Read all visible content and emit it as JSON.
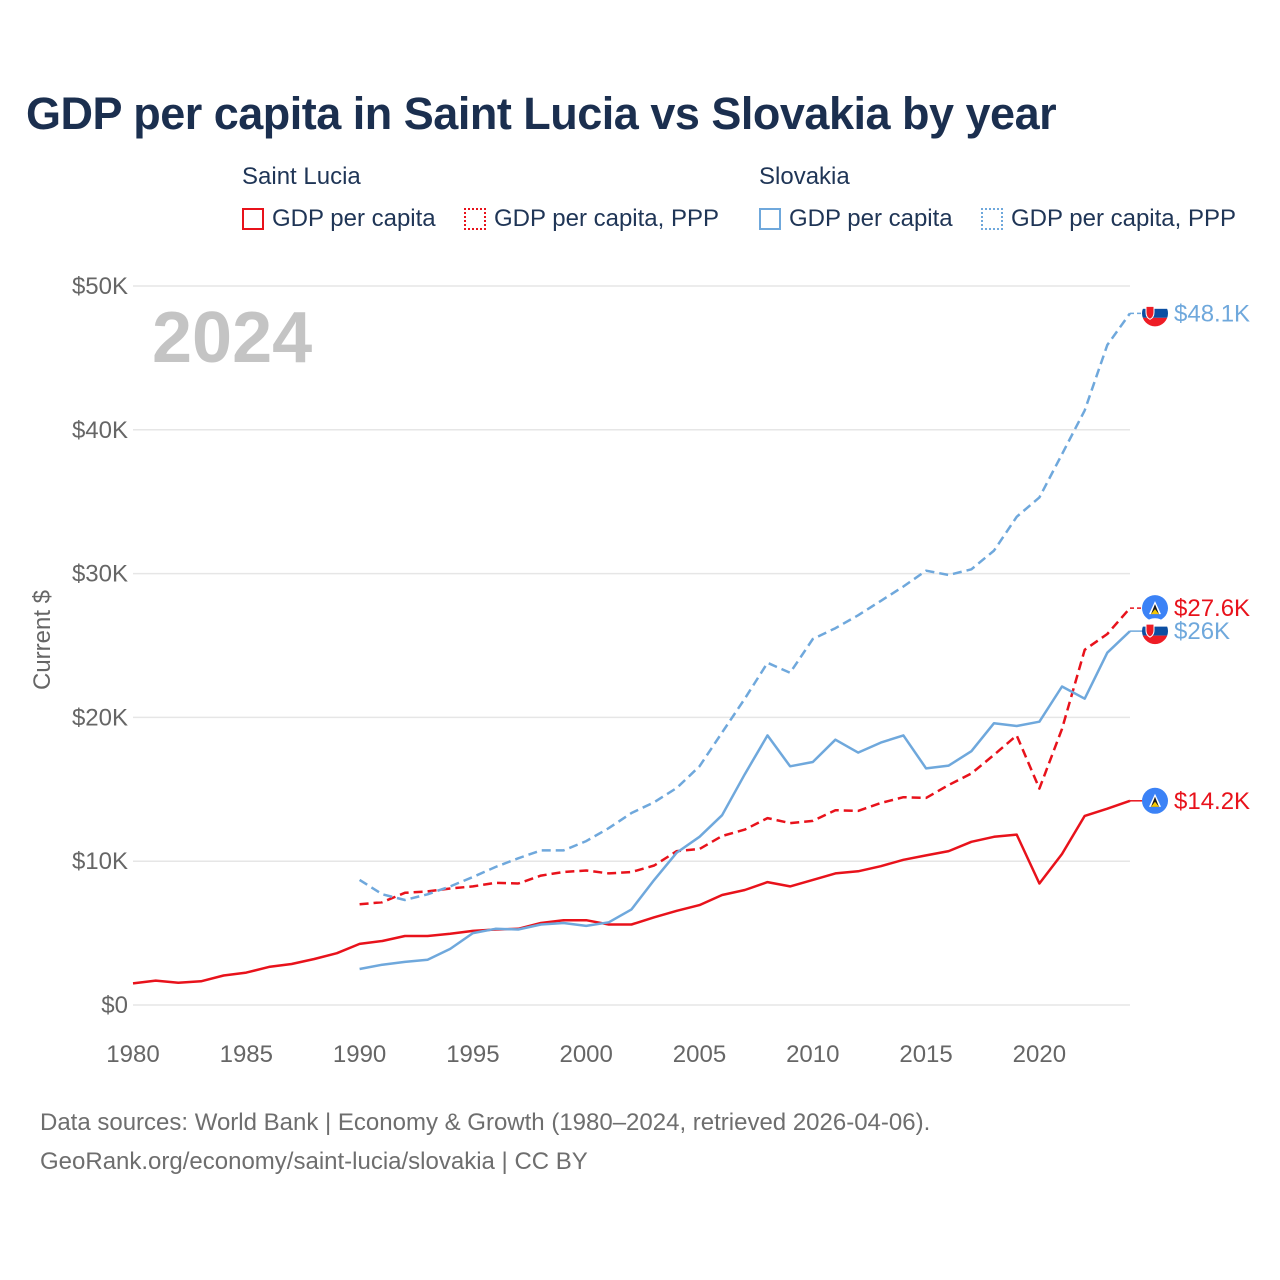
{
  "chart_data": {
    "type": "line",
    "title": "GDP per capita in Saint Lucia vs Slovakia by year",
    "year_watermark": "2024",
    "xlabel": "",
    "ylabel": "Current $",
    "xlim": [
      1980,
      2024
    ],
    "ylim": [
      0,
      50000
    ],
    "x_ticks": [
      1980,
      1985,
      1990,
      1995,
      2000,
      2005,
      2010,
      2015,
      2020
    ],
    "x_tick_labels": [
      "1980",
      "1985",
      "1990",
      "1995",
      "2000",
      "2005",
      "2010",
      "2015",
      "2020"
    ],
    "y_ticks": [
      0,
      10000,
      20000,
      30000,
      40000,
      50000
    ],
    "y_tick_labels": [
      "$0",
      "$10K",
      "$20K",
      "$30K",
      "$40K",
      "$50K"
    ],
    "grid": true,
    "legend": {
      "groups": [
        {
          "country": "Saint Lucia",
          "items": [
            "GDP per capita",
            "GDP per capita, PPP"
          ]
        },
        {
          "country": "Slovakia",
          "items": [
            "GDP per capita",
            "GDP per capita, PPP"
          ]
        }
      ]
    },
    "series": [
      {
        "name": "Saint Lucia GDP per capita",
        "country": "Saint Lucia",
        "color": "#e8121b",
        "dash": "solid",
        "end_label": "$14.2K",
        "flag": "lc",
        "x": [
          1980,
          1981,
          1982,
          1983,
          1984,
          1985,
          1986,
          1987,
          1988,
          1989,
          1990,
          1991,
          1992,
          1993,
          1994,
          1995,
          1996,
          1997,
          1998,
          1999,
          2000,
          2001,
          2002,
          2003,
          2004,
          2005,
          2006,
          2007,
          2008,
          2009,
          2010,
          2011,
          2012,
          2013,
          2014,
          2015,
          2016,
          2017,
          2018,
          2019,
          2020,
          2021,
          2022,
          2023,
          2024
        ],
        "values": [
          1500,
          1700,
          1550,
          1650,
          2050,
          2250,
          2650,
          2850,
          3200,
          3600,
          4250,
          4450,
          4800,
          4800,
          4950,
          5150,
          5250,
          5300,
          5700,
          5900,
          5900,
          5600,
          5600,
          6100,
          6550,
          6950,
          7650,
          8000,
          8550,
          8250,
          8700,
          9150,
          9300,
          9650,
          10100,
          10400,
          10700,
          11350,
          11700,
          11850,
          8450,
          10500,
          13150,
          13650,
          14200
        ]
      },
      {
        "name": "Saint Lucia GDP per capita, PPP",
        "country": "Saint Lucia",
        "color": "#e8121b",
        "dash": "dashed",
        "end_label": "$27.6K",
        "flag": "lc",
        "x": [
          1990,
          1991,
          1992,
          1993,
          1994,
          1995,
          1996,
          1997,
          1998,
          1999,
          2000,
          2001,
          2002,
          2003,
          2004,
          2005,
          2006,
          2007,
          2008,
          2009,
          2010,
          2011,
          2012,
          2013,
          2014,
          2015,
          2016,
          2017,
          2018,
          2019,
          2020,
          2021,
          2022,
          2023,
          2024
        ],
        "values": [
          7000,
          7150,
          7800,
          7900,
          8100,
          8250,
          8500,
          8450,
          9000,
          9250,
          9350,
          9150,
          9250,
          9700,
          10700,
          10850,
          11750,
          12200,
          13000,
          12650,
          12800,
          13550,
          13500,
          14050,
          14450,
          14400,
          15300,
          16100,
          17400,
          18750,
          15050,
          19200,
          24700,
          25800,
          27600
        ]
      },
      {
        "name": "Slovakia GDP per capita",
        "country": "Slovakia",
        "color": "#6fa8dc",
        "dash": "solid",
        "end_label": "$26K",
        "flag": "sk",
        "x": [
          1990,
          1991,
          1992,
          1993,
          1994,
          1995,
          1996,
          1997,
          1998,
          1999,
          2000,
          2001,
          2002,
          2003,
          2004,
          2005,
          2006,
          2007,
          2008,
          2009,
          2010,
          2011,
          2012,
          2013,
          2014,
          2015,
          2016,
          2017,
          2018,
          2019,
          2020,
          2021,
          2022,
          2023,
          2024
        ],
        "values": [
          2500,
          2800,
          3000,
          3150,
          3900,
          5000,
          5300,
          5250,
          5600,
          5700,
          5500,
          5750,
          6650,
          8700,
          10600,
          11700,
          13200,
          16050,
          18750,
          16600,
          16900,
          18450,
          17550,
          18250,
          18750,
          16450,
          16650,
          17650,
          19600,
          19400,
          19700,
          22150,
          21300,
          24500,
          26000
        ]
      },
      {
        "name": "Slovakia GDP per capita, PPP",
        "country": "Slovakia",
        "color": "#6fa8dc",
        "dash": "dashed",
        "end_label": "$48.1K",
        "flag": "sk",
        "x": [
          1990,
          1991,
          1992,
          1993,
          1994,
          1995,
          1996,
          1997,
          1998,
          1999,
          2000,
          2001,
          2002,
          2003,
          2004,
          2005,
          2006,
          2007,
          2008,
          2009,
          2010,
          2011,
          2012,
          2013,
          2014,
          2015,
          2016,
          2017,
          2018,
          2019,
          2020,
          2021,
          2022,
          2023,
          2024
        ],
        "values": [
          8700,
          7700,
          7300,
          7700,
          8250,
          8900,
          9600,
          10200,
          10750,
          10750,
          11400,
          12300,
          13350,
          14100,
          15100,
          16600,
          18950,
          21300,
          23800,
          23100,
          25450,
          26200,
          27100,
          28100,
          29100,
          30200,
          29900,
          30300,
          31600,
          33950,
          35300,
          38300,
          41350,
          45900,
          48100
        ]
      }
    ]
  },
  "legend_labels": {
    "saint_lucia": "Saint Lucia",
    "slovakia": "Slovakia",
    "gdp": "GDP per capita",
    "gdp_ppp": "GDP per capita, PPP"
  },
  "source": {
    "line1": "Data sources: World Bank | Economy & Growth (1980–2024, retrieved 2026-04-06).",
    "line2": "GeoRank.org/economy/saint-lucia/slovakia | CC BY"
  },
  "colors": {
    "saint_lucia": "#e8121b",
    "slovakia": "#6fa8dc",
    "grid": "#e6e6e6",
    "axis_text": "#666666",
    "watermark": "#c4c4c4"
  }
}
